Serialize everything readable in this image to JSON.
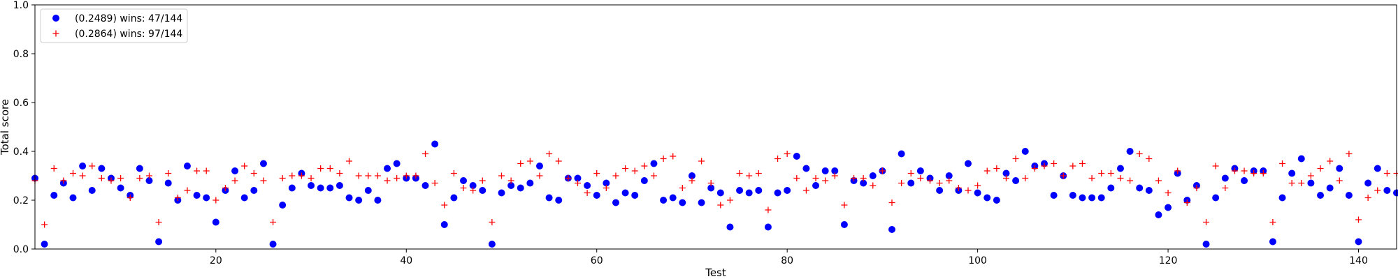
{
  "chart_data": {
    "type": "scatter",
    "title": "",
    "xlabel": "Test",
    "ylabel": "Total score",
    "xlim": [
      1,
      144
    ],
    "ylim": [
      0,
      1.0
    ],
    "xticks": [
      20,
      40,
      60,
      80,
      100,
      120,
      140
    ],
    "yticks": [
      0.0,
      0.2,
      0.4,
      0.6,
      0.8,
      1.0
    ],
    "ytick_labels": [
      "0.0",
      "0.2",
      "0.4",
      "0.6",
      "0.8",
      "1.0"
    ],
    "grid": false,
    "legend_position": "top-left",
    "series": [
      {
        "name": "(0.2489) wins: 47/144",
        "marker": "circle",
        "color": "#0000ff",
        "values": [
          0.29,
          0.02,
          0.22,
          0.27,
          0.21,
          0.34,
          0.24,
          0.33,
          0.29,
          0.25,
          0.22,
          0.33,
          0.28,
          0.03,
          0.27,
          0.2,
          0.34,
          0.22,
          0.21,
          0.11,
          0.24,
          0.32,
          0.21,
          0.24,
          0.35,
          0.02,
          0.18,
          0.25,
          0.31,
          0.26,
          0.25,
          0.25,
          0.26,
          0.21,
          0.2,
          0.24,
          0.2,
          0.33,
          0.35,
          0.29,
          0.29,
          0.26,
          0.43,
          0.1,
          0.21,
          0.28,
          0.26,
          0.24,
          0.02,
          0.23,
          0.26,
          0.25,
          0.27,
          0.34,
          0.21,
          0.2,
          0.29,
          0.29,
          0.26,
          0.22,
          0.27,
          0.19,
          0.23,
          0.22,
          0.28,
          0.35,
          0.2,
          0.21,
          0.19,
          0.3,
          0.19,
          0.25,
          0.23,
          0.09,
          0.24,
          0.23,
          0.24,
          0.09,
          0.23,
          0.24,
          0.38,
          0.33,
          0.26,
          0.32,
          0.32,
          0.1,
          0.28,
          0.27,
          0.3,
          0.32,
          0.08,
          0.39,
          0.27,
          0.32,
          0.29,
          0.24,
          0.3,
          0.24,
          0.35,
          0.23,
          0.21,
          0.2,
          0.31,
          0.28,
          0.4,
          0.34,
          0.35,
          0.22,
          0.3,
          0.22,
          0.21,
          0.21,
          0.21,
          0.25,
          0.33,
          0.4,
          0.25,
          0.24,
          0.14,
          0.17,
          0.31,
          0.2,
          0.26,
          0.02,
          0.21,
          0.29,
          0.33,
          0.28,
          0.32,
          0.32,
          0.03,
          0.21,
          0.31,
          0.37,
          0.27,
          0.22,
          0.25,
          0.33,
          0.22,
          0.03,
          0.27,
          0.33,
          0.24,
          0.23
        ]
      },
      {
        "name": "(0.2864) wins: 97/144",
        "marker": "plus",
        "color": "#ff0000",
        "values": [
          0.28,
          0.1,
          0.33,
          0.28,
          0.31,
          0.3,
          0.34,
          0.29,
          0.28,
          0.29,
          0.21,
          0.29,
          0.3,
          0.11,
          0.31,
          0.21,
          0.24,
          0.32,
          0.32,
          0.2,
          0.25,
          0.28,
          0.34,
          0.31,
          0.28,
          0.11,
          0.29,
          0.3,
          0.3,
          0.29,
          0.33,
          0.33,
          0.31,
          0.36,
          0.3,
          0.3,
          0.3,
          0.28,
          0.29,
          0.3,
          0.3,
          0.39,
          0.27,
          0.18,
          0.31,
          0.25,
          0.24,
          0.28,
          0.11,
          0.3,
          0.28,
          0.35,
          0.36,
          0.3,
          0.39,
          0.36,
          0.29,
          0.27,
          0.23,
          0.31,
          0.25,
          0.3,
          0.33,
          0.32,
          0.34,
          0.3,
          0.37,
          0.38,
          0.25,
          0.28,
          0.36,
          0.27,
          0.18,
          0.2,
          0.31,
          0.3,
          0.31,
          0.16,
          0.37,
          0.39,
          0.29,
          0.24,
          0.29,
          0.28,
          0.3,
          0.18,
          0.29,
          0.29,
          0.26,
          0.32,
          0.19,
          0.27,
          0.31,
          0.29,
          0.28,
          0.27,
          0.28,
          0.25,
          0.24,
          0.26,
          0.32,
          0.33,
          0.29,
          0.37,
          0.29,
          0.33,
          0.34,
          0.35,
          0.3,
          0.34,
          0.35,
          0.29,
          0.31,
          0.31,
          0.29,
          0.28,
          0.39,
          0.37,
          0.28,
          0.23,
          0.32,
          0.19,
          0.25,
          0.11,
          0.34,
          0.25,
          0.32,
          0.32,
          0.31,
          0.31,
          0.11,
          0.35,
          0.27,
          0.27,
          0.3,
          0.33,
          0.36,
          0.28,
          0.39,
          0.12,
          0.21,
          0.24,
          0.31,
          0.31
        ]
      }
    ]
  }
}
